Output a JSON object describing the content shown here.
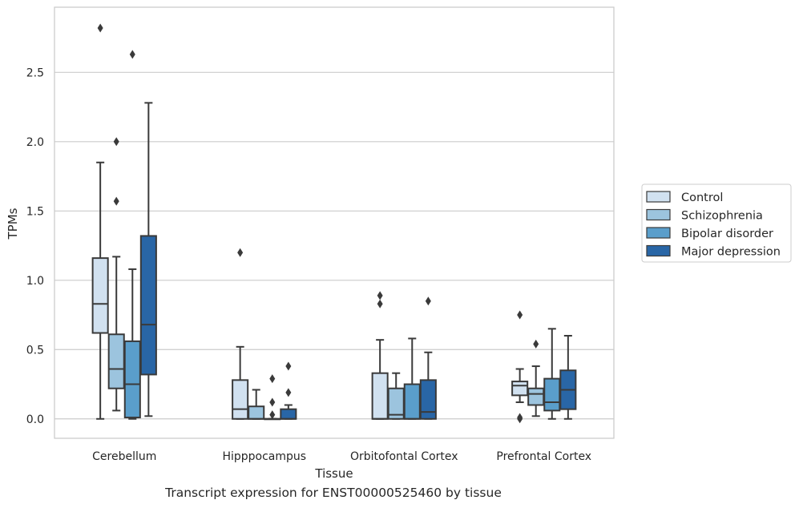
{
  "caption": "Transcript expression for ENST00000525460 by tissue",
  "chart_data": {
    "type": "box",
    "xlabel": "Tissue",
    "ylabel": "TPMs",
    "ylim": [
      -0.14,
      2.97
    ],
    "yticks": [
      0.0,
      0.5,
      1.0,
      1.5,
      2.0,
      2.5
    ],
    "ytick_labels": [
      "0.0",
      "0.5",
      "1.0",
      "1.5",
      "2.0",
      "2.5"
    ],
    "grid": "horizontal",
    "legend_position": "right",
    "categories": [
      "Cerebellum",
      "Hipppocampus",
      "Orbitofontal Cortex",
      "Prefrontal Cortex"
    ],
    "series": [
      {
        "name": "Control",
        "color": "#d1e1f0",
        "boxes": [
          {
            "whislo": 0.0,
            "q1": 0.62,
            "med": 0.83,
            "q3": 1.16,
            "whishi": 1.85,
            "fliers": [
              2.82
            ]
          },
          {
            "whislo": 0.0,
            "q1": 0.0,
            "med": 0.07,
            "q3": 0.28,
            "whishi": 0.52,
            "fliers": [
              1.2
            ]
          },
          {
            "whislo": 0.0,
            "q1": 0.0,
            "med": 0.0,
            "q3": 0.33,
            "whishi": 0.57,
            "fliers": [
              0.83,
              0.89
            ]
          },
          {
            "whislo": 0.12,
            "q1": 0.17,
            "med": 0.24,
            "q3": 0.27,
            "whishi": 0.36,
            "fliers": [
              0.0,
              0.01,
              0.75
            ]
          }
        ]
      },
      {
        "name": "Schizophrenia",
        "color": "#9cc4de",
        "boxes": [
          {
            "whislo": 0.06,
            "q1": 0.22,
            "med": 0.36,
            "q3": 0.61,
            "whishi": 1.17,
            "fliers": [
              1.57,
              2.0
            ]
          },
          {
            "whislo": 0.0,
            "q1": 0.0,
            "med": 0.0,
            "q3": 0.09,
            "whishi": 0.21,
            "fliers": []
          },
          {
            "whislo": 0.0,
            "q1": 0.0,
            "med": 0.03,
            "q3": 0.22,
            "whishi": 0.33,
            "fliers": []
          },
          {
            "whislo": 0.02,
            "q1": 0.1,
            "med": 0.18,
            "q3": 0.22,
            "whishi": 0.38,
            "fliers": [
              0.54
            ]
          }
        ]
      },
      {
        "name": "Bipolar disorder",
        "color": "#5a9ecb",
        "boxes": [
          {
            "whislo": 0.0,
            "q1": 0.01,
            "med": 0.25,
            "q3": 0.56,
            "whishi": 1.08,
            "fliers": [
              2.63
            ]
          },
          {
            "whislo": 0.0,
            "q1": 0.0,
            "med": 0.0,
            "q3": 0.0,
            "whishi": 0.0,
            "fliers": [
              0.03,
              0.12,
              0.29
            ]
          },
          {
            "whislo": 0.0,
            "q1": 0.0,
            "med": 0.0,
            "q3": 0.25,
            "whishi": 0.58,
            "fliers": []
          },
          {
            "whislo": 0.0,
            "q1": 0.06,
            "med": 0.12,
            "q3": 0.29,
            "whishi": 0.65,
            "fliers": []
          }
        ]
      },
      {
        "name": "Major depression",
        "color": "#2966a6",
        "boxes": [
          {
            "whislo": 0.02,
            "q1": 0.32,
            "med": 0.68,
            "q3": 1.32,
            "whishi": 2.28,
            "fliers": []
          },
          {
            "whislo": 0.0,
            "q1": 0.0,
            "med": 0.0,
            "q3": 0.07,
            "whishi": 0.1,
            "fliers": [
              0.19,
              0.38
            ]
          },
          {
            "whislo": 0.0,
            "q1": 0.0,
            "med": 0.05,
            "q3": 0.28,
            "whishi": 0.48,
            "fliers": [
              0.85
            ]
          },
          {
            "whislo": 0.0,
            "q1": 0.07,
            "med": 0.21,
            "q3": 0.35,
            "whishi": 0.6,
            "fliers": []
          }
        ]
      }
    ]
  }
}
